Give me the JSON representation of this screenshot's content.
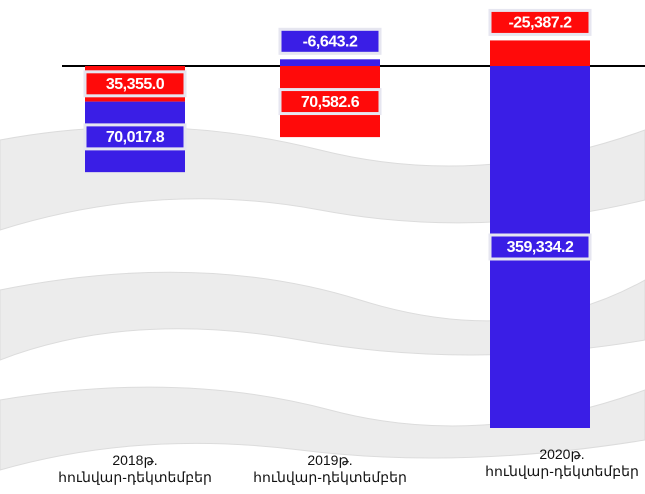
{
  "chart_data": {
    "type": "bar",
    "stacked": true,
    "categories": [
      "2018թ.\nհունվար-դեկտեմբեր",
      "2019թ.\nհունվար-դեկտեմբեր",
      "2020թ.\nհունվար-դեկտեմբեր"
    ],
    "series": [
      {
        "color": "#ff0a0a",
        "values": [
          35355.0,
          70582.6,
          -25387.2
        ],
        "value_labels": [
          "35,355.0",
          "70,582.6",
          "-25,387.2"
        ]
      },
      {
        "color": "#3a1ee6",
        "values": [
          70017.8,
          -6643.2,
          359334.2
        ],
        "value_labels": [
          "70,017.8",
          "-6,643.2",
          "359,334.2"
        ]
      }
    ]
  }
}
